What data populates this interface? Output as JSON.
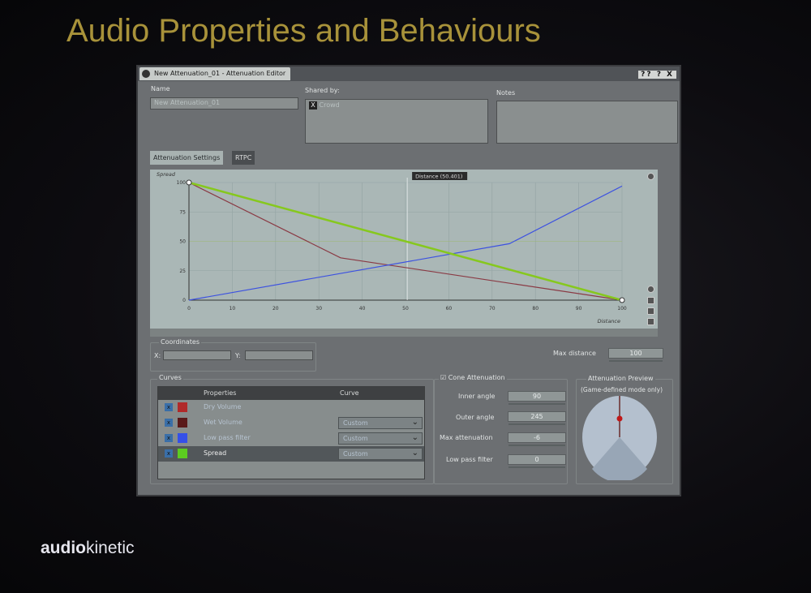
{
  "slide": {
    "title": "Audio Properties and Behaviours",
    "logo": "audiokinetic",
    "logo_bold": "audio",
    "logo_rest": "kinetic"
  },
  "window": {
    "title": "New Attenuation_01 - Attenuation Editor",
    "buttons": "?? ? X"
  },
  "name": {
    "label": "Name",
    "value": "New Attenuation_01"
  },
  "shared_by": {
    "label": "Shared by:",
    "items": [
      "Crowd"
    ]
  },
  "notes": {
    "label": "Notes",
    "value": ""
  },
  "tabs": [
    {
      "label": "Attenuation Settings",
      "active": true
    },
    {
      "label": "RTPC",
      "active": false
    }
  ],
  "graph": {
    "y_label": "Spread",
    "x_label": "Distance",
    "cursor_label": "Distance (50.401)"
  },
  "chart_data": {
    "type": "line",
    "xlabel": "Distance",
    "ylabel": "Spread",
    "xlim": [
      0,
      100
    ],
    "ylim": [
      0,
      100
    ],
    "x_ticks": [
      "0",
      "10",
      "20",
      "30",
      "40",
      "50",
      "60",
      "70",
      "80",
      "90",
      "100"
    ],
    "y_ticks": [
      "0",
      "25",
      "50",
      "75",
      "100"
    ],
    "grid": true,
    "series": [
      {
        "name": "Dry Volume",
        "color": "#8a3a44",
        "points": [
          [
            0,
            100
          ],
          [
            35,
            36
          ],
          [
            100,
            0
          ]
        ]
      },
      {
        "name": "Low pass filter",
        "color": "#3d52e0",
        "points": [
          [
            0,
            0
          ],
          [
            74,
            48
          ],
          [
            100,
            97
          ]
        ]
      },
      {
        "name": "Spread",
        "color": "#86c81e",
        "points": [
          [
            0,
            100
          ],
          [
            100,
            0
          ]
        ]
      }
    ]
  },
  "coordinates": {
    "label": "Coordinates",
    "x_label": "X:",
    "y_label": "Y:",
    "x": "",
    "y": ""
  },
  "max_distance": {
    "label": "Max distance",
    "value": "100"
  },
  "curves": {
    "label": "Curves",
    "headers": [
      "Properties",
      "Curve"
    ],
    "rows": [
      {
        "name": "Dry Volume",
        "color": "#b02a2a",
        "curve": "",
        "selected": false
      },
      {
        "name": "Wet Volume",
        "color": "#5a1a1a",
        "curve": "Custom",
        "selected": false
      },
      {
        "name": "Low pass filter",
        "color": "#3550e8",
        "curve": "Custom",
        "selected": false
      },
      {
        "name": "Spread",
        "color": "#5ccc20",
        "curve": "Custom",
        "selected": true
      }
    ]
  },
  "cone": {
    "label": "Cone Attenuation",
    "enabled": true,
    "inner_angle": {
      "label": "Inner angle",
      "value": "90"
    },
    "outer_angle": {
      "label": "Outer angle",
      "value": "245"
    },
    "max_attenuation": {
      "label": "Max attenuation",
      "value": "-6"
    },
    "low_pass": {
      "label": "Low pass filter",
      "value": "0"
    }
  },
  "preview": {
    "label": "Attenuation Preview",
    "sublabel": "(Game-defined mode only)"
  }
}
